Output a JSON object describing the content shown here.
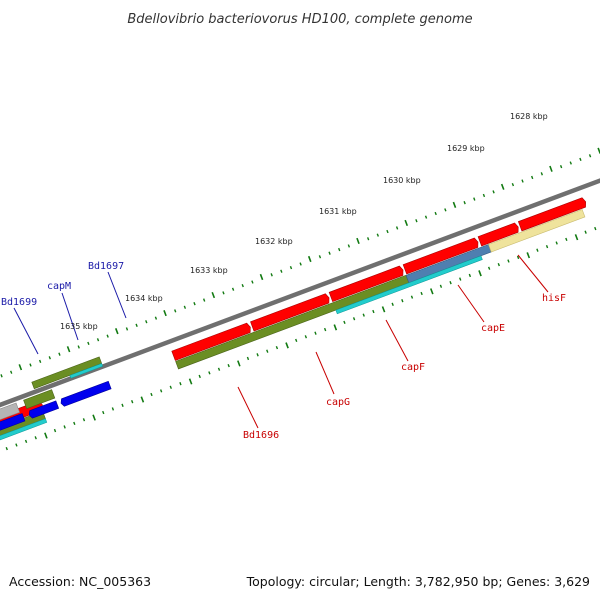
{
  "title": "Bdellovibrio bacteriovorus HD100, complete genome",
  "footer": {
    "accession": "Accession: NC_005363",
    "summary": "Topology: circular; Length: 3,782,950 bp; Genes: 3,629"
  },
  "colors": {
    "backbone": "#6f6f6f",
    "tick": "#127a12",
    "label_blue": "#1a1aa8",
    "label_red": "#c80000",
    "gene_red": "#ff0000",
    "gene_blue": "#0000ee",
    "gene_gray": "#b5b5b5",
    "gene_olive": "#6b8e23",
    "gene_cyan": "#22cccc",
    "gene_steel": "#4f7fb0",
    "gene_khaki": "#efe39c"
  },
  "scale_labels": [
    "1628 kbp",
    "1629 kbp",
    "1630 kbp",
    "1631 kbp",
    "1632 kbp",
    "1633 kbp",
    "1634 kbp",
    "1635 kbp"
  ],
  "gene_labels": {
    "Bd1699": "Bd1699",
    "capM": "capM",
    "Bd1697": "Bd1697",
    "hisF": "hisF",
    "capE": "capE",
    "capF": "capF",
    "capG": "capG",
    "Bd1696": "Bd1696"
  }
}
